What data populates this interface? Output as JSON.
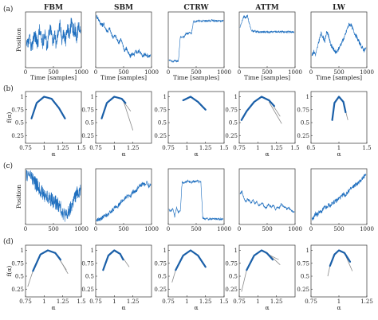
{
  "figure": {
    "panel_labels": [
      "(a)",
      "(b)",
      "(c)",
      "(d)"
    ],
    "column_titles": [
      "FBM",
      "SBM",
      "CTRW",
      "ATTM",
      "LW"
    ],
    "colors": {
      "series": "#1f6fbf",
      "thick": "#1a5fa8",
      "fit": "#8a8a8a",
      "axis": "#333333"
    }
  },
  "chart_data": [
    {
      "row": "a",
      "type": "line",
      "series_style": "trajectory",
      "xlabel": "Time [samples]",
      "ylabel": "Position",
      "xlim": [
        0,
        1000
      ],
      "xticks": [
        "0",
        "500",
        "1000"
      ],
      "panels": [
        {
          "title": "FBM",
          "y": [
            0.35,
            0.42,
            0.5,
            0.31,
            0.62,
            0.55,
            0.4,
            0.7,
            0.52,
            0.45,
            0.66,
            0.38,
            0.58,
            0.72,
            0.49,
            0.6,
            0.41,
            0.68,
            0.77,
            0.54,
            0.63,
            0.48,
            0.73,
            0.59,
            0.81,
            0.66,
            0.7,
            0.55,
            0.78,
            0.69
          ]
        },
        {
          "title": "SBM",
          "y": [
            0.95,
            0.9,
            0.82,
            0.78,
            0.8,
            0.7,
            0.66,
            0.72,
            0.6,
            0.55,
            0.58,
            0.5,
            0.45,
            0.52,
            0.4,
            0.3,
            0.34,
            0.25,
            0.18,
            0.24,
            0.2,
            0.28,
            0.26,
            0.3,
            0.22,
            0.19,
            0.24,
            0.2,
            0.18,
            0.21
          ]
        },
        {
          "title": "CTRW",
          "y": [
            0.12,
            0.1,
            0.08,
            0.11,
            0.09,
            0.1,
            0.55,
            0.56,
            0.55,
            0.62,
            0.62,
            0.63,
            0.62,
            0.85,
            0.85,
            0.86,
            0.86,
            0.85,
            0.86,
            0.86,
            0.86,
            0.86,
            0.86,
            0.87,
            0.86,
            0.86,
            0.86,
            0.86,
            0.86,
            0.86
          ]
        },
        {
          "title": "ATTM",
          "y": [
            0.75,
            0.85,
            0.95,
            0.92,
            0.96,
            0.8,
            0.68,
            0.66,
            0.66,
            0.65,
            0.65,
            0.65,
            0.65,
            0.65,
            0.65,
            0.65,
            0.65,
            0.65,
            0.65,
            0.65,
            0.65,
            0.65,
            0.65,
            0.65,
            0.65,
            0.65,
            0.65,
            0.65,
            0.65,
            0.64
          ]
        },
        {
          "title": "LW",
          "y": [
            0.2,
            0.28,
            0.22,
            0.35,
            0.5,
            0.62,
            0.55,
            0.48,
            0.66,
            0.58,
            0.42,
            0.35,
            0.3,
            0.25,
            0.3,
            0.38,
            0.45,
            0.52,
            0.6,
            0.72,
            0.8,
            0.78,
            0.7,
            0.62,
            0.55,
            0.48,
            0.4,
            0.35,
            0.3,
            0.34
          ]
        }
      ]
    },
    {
      "row": "b",
      "type": "line",
      "series_style": "spectrum",
      "xlabel": "α",
      "ylabel": "f(α)",
      "panels": [
        {
          "xlim": [
            0.75,
            1.5
          ],
          "xticks": [
            "0.75",
            "1",
            "1.25",
            "1.5"
          ],
          "yticks": [
            "0.25",
            "0.5",
            "0.75",
            "1"
          ],
          "curve": {
            "x": [
              0.83,
              0.9,
              1.0,
              1.1,
              1.2,
              1.28
            ],
            "y": [
              0.58,
              0.88,
              1.0,
              0.96,
              0.78,
              0.58
            ]
          },
          "fits": []
        },
        {
          "xlim": [
            0.75,
            1.5
          ],
          "xticks": [
            "0.75",
            "1",
            "1.25"
          ],
          "yticks": [
            "0.25",
            "0.5",
            "0.75",
            "1"
          ],
          "curve": {
            "x": [
              0.83,
              0.9,
              1.0,
              1.1,
              1.15
            ],
            "y": [
              0.58,
              0.88,
              1.0,
              0.96,
              0.88
            ]
          },
          "fits": [
            {
              "x": [
                1.1,
                1.22
              ],
              "y": [
                0.95,
                0.72
              ]
            },
            {
              "x": [
                1.12,
                1.25
              ],
              "y": [
                0.93,
                0.35
              ]
            }
          ]
        },
        {
          "xlim": [
            0.75,
            1.5
          ],
          "xticks": [
            "0.75",
            "1",
            "1.25",
            "1.5"
          ],
          "yticks": [
            "0.25",
            "0.5",
            "0.75",
            "1"
          ],
          "curve": {
            "x": [
              0.95,
              1.05,
              1.15,
              1.25
            ],
            "y": [
              0.93,
              1.0,
              0.9,
              0.75
            ]
          },
          "fits": []
        },
        {
          "xlim": [
            0.75,
            1.5
          ],
          "xticks": [
            "0.75",
            "1",
            "1.25",
            "1.5"
          ],
          "yticks": [
            "0.25",
            "0.5",
            "0.75",
            "1"
          ],
          "curve": {
            "x": [
              0.78,
              0.85,
              0.95,
              1.05,
              1.15,
              1.22
            ],
            "y": [
              0.55,
              0.72,
              0.9,
              1.0,
              0.93,
              0.82
            ]
          },
          "fits": [
            {
              "x": [
                1.15,
                1.3
              ],
              "y": [
                0.95,
                0.62
              ]
            },
            {
              "x": [
                1.15,
                1.32
              ],
              "y": [
                0.9,
                0.48
              ]
            }
          ]
        },
        {
          "xlim": [
            0.5,
            1.5
          ],
          "xticks": [
            "0.5",
            "1",
            "1.5"
          ],
          "yticks": [
            "0.25",
            "0.5",
            "0.75",
            "1"
          ],
          "curve": {
            "x": [
              0.88,
              0.92,
              1.0,
              1.08,
              1.12
            ],
            "y": [
              0.55,
              0.88,
              1.0,
              0.9,
              0.7
            ]
          },
          "fits": [
            {
              "x": [
                1.08,
                1.16
              ],
              "y": [
                0.9,
                0.55
              ]
            }
          ]
        }
      ]
    },
    {
      "row": "c",
      "type": "line",
      "series_style": "trajectory",
      "xlabel": "",
      "ylabel": "Position",
      "xlim": [
        0,
        1000
      ],
      "xticks": [
        "0",
        "500",
        "1000"
      ],
      "panels": [
        {
          "title": "FBM",
          "y": [
            0.92,
            0.93,
            0.91,
            0.86,
            0.8,
            0.74,
            0.7,
            0.66,
            0.6,
            0.55,
            0.53,
            0.5,
            0.48,
            0.46,
            0.43,
            0.4,
            0.38,
            0.35,
            0.3,
            0.24,
            0.18,
            0.14,
            0.15,
            0.22,
            0.3,
            0.4,
            0.48,
            0.55,
            0.6,
            0.63
          ]
        },
        {
          "title": "SBM",
          "y": [
            0.05,
            0.07,
            0.06,
            0.1,
            0.12,
            0.15,
            0.14,
            0.2,
            0.22,
            0.26,
            0.3,
            0.28,
            0.35,
            0.4,
            0.42,
            0.46,
            0.5,
            0.52,
            0.48,
            0.56,
            0.6,
            0.58,
            0.66,
            0.7,
            0.72,
            0.75,
            0.72,
            0.78,
            0.7,
            0.74
          ]
        },
        {
          "title": "CTRW",
          "y": [
            0.25,
            0.22,
            0.28,
            0.12,
            0.3,
            0.2,
            0.22,
            0.78,
            0.76,
            0.78,
            0.8,
            0.78,
            0.77,
            0.79,
            0.78,
            0.8,
            0.78,
            0.79,
            0.1,
            0.08,
            0.08,
            0.07,
            0.08,
            0.07,
            0.08,
            0.07,
            0.08,
            0.07,
            0.07,
            0.08
          ]
        },
        {
          "title": "ATTM",
          "y": [
            0.55,
            0.6,
            0.48,
            0.4,
            0.45,
            0.42,
            0.38,
            0.44,
            0.36,
            0.4,
            0.33,
            0.35,
            0.38,
            0.3,
            0.28,
            0.36,
            0.32,
            0.3,
            0.34,
            0.25,
            0.3,
            0.28,
            0.36,
            0.32,
            0.3,
            0.26,
            0.3,
            0.24,
            0.22,
            0.2
          ]
        },
        {
          "title": "LW",
          "y": [
            0.05,
            0.1,
            0.18,
            0.15,
            0.22,
            0.2,
            0.26,
            0.3,
            0.28,
            0.35,
            0.32,
            0.38,
            0.4,
            0.42,
            0.45,
            0.48,
            0.5,
            0.55,
            0.52,
            0.58,
            0.62,
            0.65,
            0.68,
            0.72,
            0.74,
            0.76,
            0.8,
            0.85,
            0.88,
            0.92
          ]
        }
      ]
    },
    {
      "row": "d",
      "type": "line",
      "series_style": "spectrum",
      "xlabel": "α",
      "ylabel": "f(α)",
      "panels": [
        {
          "xlim": [
            0.75,
            1.5
          ],
          "xticks": [
            "0.75",
            "1",
            "1.25",
            "1.5"
          ],
          "yticks": [
            "0.25",
            "0.5",
            "0.75",
            "1"
          ],
          "curve": {
            "x": [
              0.85,
              0.95,
              1.05,
              1.15,
              1.22
            ],
            "y": [
              0.6,
              0.92,
              1.0,
              0.95,
              0.82
            ]
          },
          "fits": [
            {
              "x": [
                0.85,
                0.78
              ],
              "y": [
                0.6,
                0.3
              ]
            },
            {
              "x": [
                1.2,
                1.32
              ],
              "y": [
                0.85,
                0.55
              ]
            },
            {
              "x": [
                1.18,
                1.3
              ],
              "y": [
                0.88,
                0.62
              ]
            }
          ]
        },
        {
          "xlim": [
            0.75,
            1.5
          ],
          "xticks": [
            "0.75",
            "1",
            "1.25"
          ],
          "yticks": [
            "0.25",
            "0.5",
            "0.75",
            "1"
          ],
          "curve": {
            "x": [
              0.85,
              0.92,
              1.0,
              1.08,
              1.12
            ],
            "y": [
              0.62,
              0.9,
              1.0,
              0.93,
              0.82
            ]
          },
          "fits": [
            {
              "x": [
                1.08,
                1.2
              ],
              "y": [
                0.93,
                0.68
              ]
            }
          ]
        },
        {
          "xlim": [
            0.75,
            1.5
          ],
          "xticks": [
            "0.75",
            "1",
            "1.25",
            "1.5"
          ],
          "yticks": [
            "0.25",
            "0.5",
            "0.75",
            "1"
          ],
          "curve": {
            "x": [
              0.85,
              0.95,
              1.05,
              1.15,
              1.25
            ],
            "y": [
              0.62,
              0.9,
              1.0,
              0.9,
              0.68
            ]
          },
          "fits": [
            {
              "x": [
                0.85,
                0.8
              ],
              "y": [
                0.62,
                0.38
              ]
            }
          ]
        },
        {
          "xlim": [
            0.75,
            1.5
          ],
          "xticks": [
            "0.75",
            "1",
            "1.25"
          ],
          "yticks": [
            "0.25",
            "0.5",
            "0.75",
            "1"
          ],
          "curve": {
            "x": [
              0.85,
              0.95,
              1.05,
              1.12,
              1.2
            ],
            "y": [
              0.62,
              0.9,
              1.0,
              0.95,
              0.82
            ]
          },
          "fits": [
            {
              "x": [
                0.85,
                0.78
              ],
              "y": [
                0.62,
                0.2
              ]
            },
            {
              "x": [
                1.12,
                1.3
              ],
              "y": [
                0.96,
                0.72
              ]
            },
            {
              "x": [
                1.1,
                1.28
              ],
              "y": [
                0.95,
                0.82
              ]
            }
          ]
        },
        {
          "xlim": [
            0.75,
            1.25
          ],
          "xticks": [
            "0.75",
            "1",
            "1.25"
          ],
          "yticks": [
            "0.25",
            "0.5",
            "0.75",
            "1"
          ],
          "curve": {
            "x": [
              0.92,
              0.96,
              1.0,
              1.05,
              1.1
            ],
            "y": [
              0.7,
              0.92,
              1.0,
              0.95,
              0.78
            ]
          },
          "fits": [
            {
              "x": [
                1.05,
                1.12
              ],
              "y": [
                0.95,
                0.6
              ]
            },
            {
              "x": [
                0.92,
                0.9
              ],
              "y": [
                0.7,
                0.5
              ]
            }
          ]
        }
      ]
    }
  ]
}
